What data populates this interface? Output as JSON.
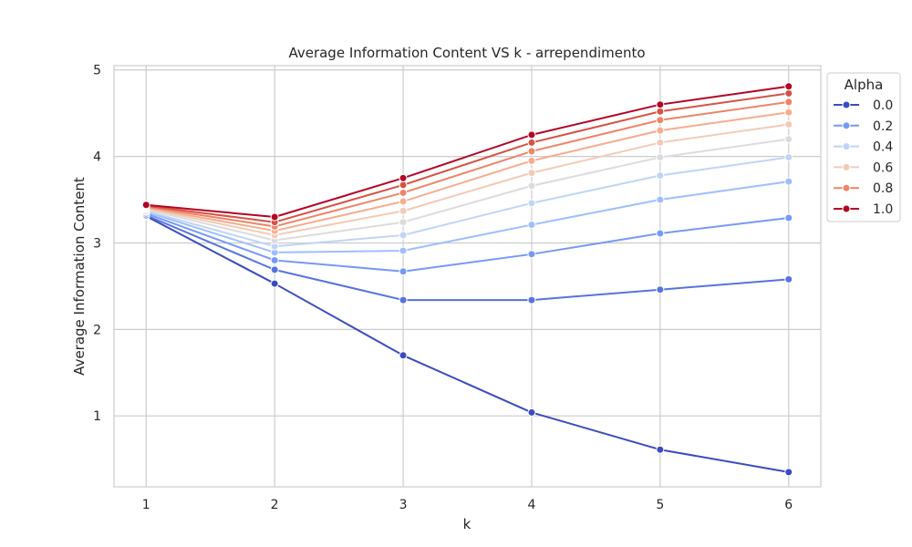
{
  "chart_data": {
    "type": "line",
    "title": "Average Information Content VS k - arrependimento",
    "xlabel": "k",
    "ylabel": "Average Information Content",
    "x": [
      1,
      2,
      3,
      4,
      5,
      6
    ],
    "xlim": [
      0.75,
      6.25
    ],
    "ylim": [
      0.18,
      5.05
    ],
    "xticks": [
      "1",
      "2",
      "3",
      "4",
      "5",
      "6"
    ],
    "yticks": [
      "1",
      "2",
      "3",
      "4",
      "5"
    ],
    "grid": true,
    "legend": {
      "title": "Alpha",
      "placement": "outside-right-top",
      "entries": [
        "0.0",
        "0.2",
        "0.4",
        "0.6",
        "0.8",
        "1.0"
      ]
    },
    "series": [
      {
        "alpha": 0.0,
        "color": "#3b4cc0",
        "values": [
          3.31,
          2.53,
          1.7,
          1.04,
          0.61,
          0.35
        ]
      },
      {
        "alpha": 0.1,
        "color": "#5673e0",
        "values": [
          3.32,
          2.69,
          2.34,
          2.34,
          2.46,
          2.58
        ]
      },
      {
        "alpha": 0.2,
        "color": "#7699f6",
        "values": [
          3.34,
          2.8,
          2.67,
          2.87,
          3.11,
          3.29
        ]
      },
      {
        "alpha": 0.3,
        "color": "#9ebeff",
        "values": [
          3.36,
          2.89,
          2.91,
          3.21,
          3.5,
          3.71
        ]
      },
      {
        "alpha": 0.4,
        "color": "#c0d4f5",
        "values": [
          3.37,
          2.96,
          3.09,
          3.46,
          3.78,
          3.99
        ]
      },
      {
        "alpha": 0.5,
        "color": "#dddcdc",
        "values": [
          3.39,
          3.03,
          3.24,
          3.66,
          3.99,
          4.2
        ]
      },
      {
        "alpha": 0.6,
        "color": "#f2cbb7",
        "values": [
          3.4,
          3.09,
          3.37,
          3.81,
          4.16,
          4.37
        ]
      },
      {
        "alpha": 0.7,
        "color": "#f7ac8e",
        "values": [
          3.41,
          3.14,
          3.48,
          3.95,
          4.3,
          4.51
        ]
      },
      {
        "alpha": 0.8,
        "color": "#ee8468",
        "values": [
          3.42,
          3.19,
          3.58,
          4.06,
          4.42,
          4.63
        ]
      },
      {
        "alpha": 0.9,
        "color": "#d65244",
        "values": [
          3.43,
          3.24,
          3.67,
          4.16,
          4.52,
          4.73
        ]
      },
      {
        "alpha": 1.0,
        "color": "#b40426",
        "values": [
          3.44,
          3.3,
          3.75,
          4.25,
          4.6,
          4.81
        ]
      }
    ]
  }
}
